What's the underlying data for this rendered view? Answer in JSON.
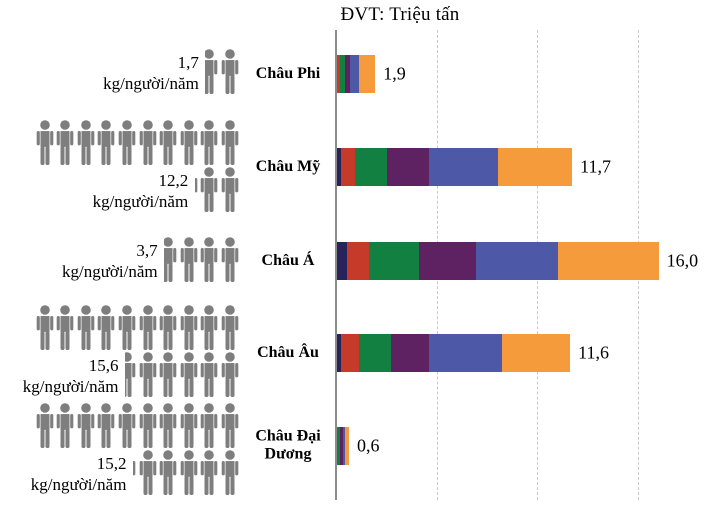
{
  "title": {
    "unit_label": "ĐVT: Triệu tấn"
  },
  "colors": {
    "series": [
      "#29235C",
      "#C53A28",
      "#118040",
      "#5E2263",
      "#4D58A7",
      "#F59B3C"
    ],
    "icon": "#7E7E7E",
    "axis": "#8C8C8C",
    "gridline": "#C8C8C8",
    "text": "#000000"
  },
  "chart_data": {
    "type": "bar",
    "orientation": "horizontal",
    "stacked": true,
    "title": "ĐVT: Triệu tấn",
    "unit": "Triệu tấn",
    "categories": [
      "Châu Phi",
      "Châu Mỹ",
      "Châu Á",
      "Châu Âu",
      "Châu Đại Dương"
    ],
    "segments": [
      [
        0,
        0.15,
        0.25,
        0.25,
        0.45,
        0.8
      ],
      [
        0.2,
        0.7,
        1.6,
        2.1,
        3.4,
        3.7
      ],
      [
        0.5,
        1.1,
        2.5,
        2.8,
        4.1,
        5.0
      ],
      [
        0.2,
        0.9,
        1.6,
        1.9,
        3.6,
        3.4
      ],
      [
        0,
        0,
        0.15,
        0.15,
        0.1,
        0.2
      ]
    ],
    "totals": [
      1.9,
      11.7,
      16.0,
      11.6,
      0.6
    ],
    "total_labels": [
      "1,9",
      "11,7",
      "16,0",
      "11,6",
      "0,6"
    ],
    "xlim": [
      0,
      18.85
    ],
    "gridlines_at": [
      5,
      10,
      15
    ],
    "grid": true,
    "legend": "none",
    "pictogram": {
      "unit_label": "kg/người/năm",
      "icon_value": 1,
      "values": [
        1.7,
        12.2,
        3.7,
        15.6,
        15.2
      ],
      "value_labels": [
        "1,7",
        "12,2",
        "3,7",
        "15,6",
        "15,2"
      ],
      "icon_rows": [
        [
          [
            0.7,
            1
          ]
        ],
        [
          [
            0,
            10
          ],
          [
            0.2,
            2
          ]
        ],
        [
          [
            0.7,
            3
          ]
        ],
        [
          [
            0,
            10
          ],
          [
            0.6,
            5
          ]
        ],
        [
          [
            0,
            10
          ],
          [
            0.2,
            5
          ]
        ]
      ]
    }
  }
}
